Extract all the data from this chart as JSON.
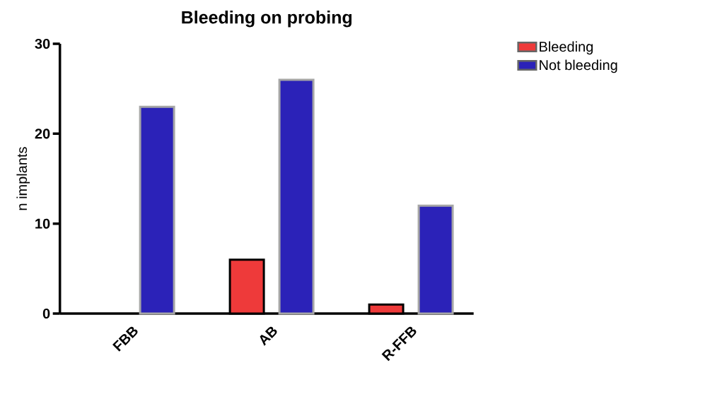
{
  "chart_data": {
    "type": "bar",
    "title": "Bleeding on probing",
    "ylabel": "n implants",
    "categories": [
      "FBB",
      "AB",
      "R-FFB"
    ],
    "series": [
      {
        "name": "Bleeding",
        "color": "#ee3a3a",
        "values": [
          0,
          6,
          1
        ]
      },
      {
        "name": "Not bleeding",
        "color": "#2b22b8",
        "values": [
          23,
          26,
          12
        ]
      }
    ],
    "ylim": [
      0,
      30
    ],
    "yticks": [
      0,
      10,
      20,
      30
    ],
    "legend": "top right"
  }
}
